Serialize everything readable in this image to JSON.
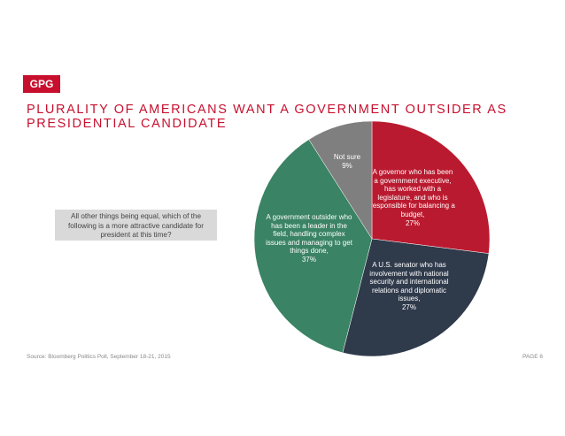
{
  "logo": "GPG",
  "title": "PLURALITY OF AMERICANS WANT A GOVERNMENT OUTSIDER AS PRESIDENTIAL CANDIDATE",
  "question": "All other things being equal, which of the following is a more attractive candidate for president at this time?",
  "source": "Source: Bloomberg Politics Poll, September 18-21, 2015",
  "page": "PAGE 6",
  "chart_data": {
    "type": "pie",
    "categories": [
      "A governor who has been a government executive, has worked with a legislature, and who is responsible for balancing a budget,",
      "A U.S. senator who has involvement with national security and international relations and diplomatic issues,",
      "A government outsider who has been a leader in the field, handling complex issues and managing to get things done,",
      "Not sure"
    ],
    "values": [
      27,
      27,
      37,
      9
    ],
    "value_labels": [
      "27%",
      "27%",
      "37%",
      "9%"
    ],
    "colors": [
      "#ba1a2f",
      "#2f3a4b",
      "#3a8364",
      "#7f7f7f"
    ]
  }
}
